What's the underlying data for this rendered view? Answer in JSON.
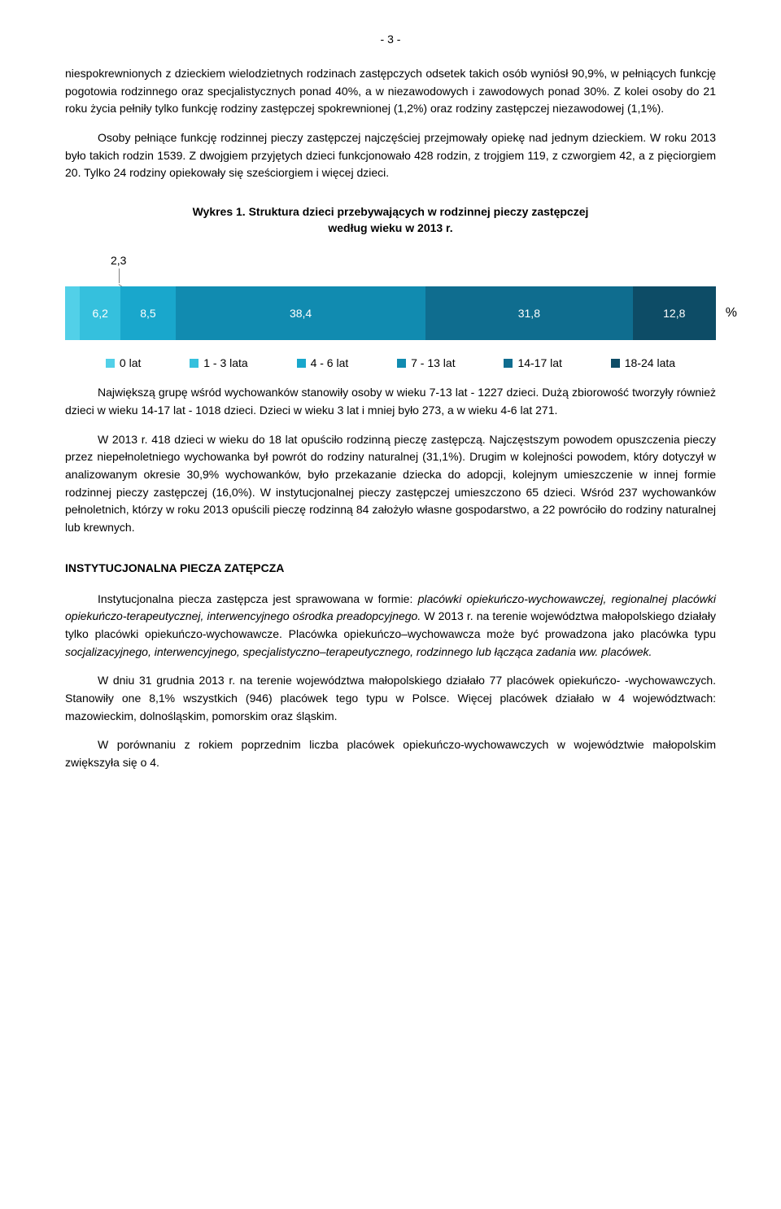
{
  "page_number": "- 3 -",
  "para1": "niespokrewnionych z dzieckiem wielodzietnych rodzinach zastępczych odsetek takich osób wyniósł 90,9%, w pełniących funkcję pogotowia rodzinnego oraz specjalistycznych ponad 40%, a w niezawodowych i zawodowych ponad 30%. Z kolei osoby do 21 roku życia pełniły tylko funkcję rodziny zastępczej spokrewnionej (1,2%) oraz rodziny zastępczej niezawodowej (1,1%).",
  "para2": "Osoby pełniące funkcję rodzinnej pieczy zastępczej najczęściej przejmowały opiekę nad jednym dzieckiem. W roku 2013 było takich rodzin 1539. Z dwojgiem przyjętych dzieci funkcjonowało 428 rodzin, z trojgiem 119, z czworgiem 42, a z pięciorgiem 20. Tylko 24 rodziny opiekowały się sześciorgiem i więcej dzieci.",
  "chart": {
    "title": "Wykres 1. Struktura dzieci przebywających w rodzinnej pieczy zastępczej",
    "subtitle": "według wieku w 2013 r.",
    "callout_value": "2,3",
    "percent_symbol": "%",
    "segments": [
      {
        "label": "",
        "value": 2.3,
        "color": "#52d0e8"
      },
      {
        "label": "6,2",
        "value": 6.2,
        "color": "#35c0dd"
      },
      {
        "label": "8,5",
        "value": 8.5,
        "color": "#19a7cc"
      },
      {
        "label": "38,4",
        "value": 38.4,
        "color": "#118bb0"
      },
      {
        "label": "31,8",
        "value": 31.8,
        "color": "#0f6d8f"
      },
      {
        "label": "12,8",
        "value": 12.8,
        "color": "#0d4c66"
      }
    ],
    "legend": [
      {
        "label": "0 lat",
        "color": "#52d0e8"
      },
      {
        "label": "1 - 3 lata",
        "color": "#35c0dd"
      },
      {
        "label": "4 - 6 lat",
        "color": "#19a7cc"
      },
      {
        "label": "7 - 13 lat",
        "color": "#118bb0"
      },
      {
        "label": "14-17 lat",
        "color": "#0f6d8f"
      },
      {
        "label": "18-24 lata",
        "color": "#0d4c66"
      }
    ]
  },
  "para3": "Największą grupę wśród wychowanków stanowiły osoby w wieku 7-13 lat - 1227 dzieci. Dużą zbiorowość tworzyły również dzieci w wieku 14-17 lat - 1018 dzieci. Dzieci w wieku 3 lat i mniej było 273, a w wieku 4-6 lat 271.",
  "para4": "W 2013 r. 418 dzieci w wieku do 18 lat opuściło rodzinną pieczę zastępczą. Najczęstszym powodem opuszczenia pieczy przez niepełnoletniego wychowanka był powrót do rodziny naturalnej (31,1%). Drugim w kolejności powodem, który dotyczył w analizowanym okresie 30,9% wychowanków, było przekazanie dziecka do adopcji, kolejnym umieszczenie w innej formie rodzinnej pieczy zastępczej (16,0%). W instytucjonalnej pieczy zastępczej umieszczono 65 dzieci. Wśród 237 wychowanków pełnoletnich, którzy w roku 2013 opuścili pieczę rodzinną 84 założyło własne gospodarstwo, a 22 powróciło do rodziny naturalnej lub krewnych.",
  "section_heading": "INSTYTUCJONALNA PIECZA ZATĘPCZA",
  "para5_plain": "Instytucjonalna piecza zastępcza jest sprawowana w formie: ",
  "para5_italic1": "placówki opiekuńczo-wychowawczej, regionalnej placówki opiekuńczo-terapeutycznej, interwencyjnego ośrodka preadopcyjnego.",
  "para5_tail": " W 2013 r. na terenie województwa małopolskiego działały tylko placówki opiekuńczo-wychowawcze. Placówka opiekuńczo–wychowawcza może być prowadzona jako placówka typu ",
  "para5_italic2": "socjalizacyjnego, interwencyjnego, specjalistyczno–terapeutycznego, rodzinnego lub łącząca zadania ww. placówek.",
  "para6": "W dniu 31 grudnia 2013 r. na terenie województwa małopolskiego działało 77 placówek opiekuńczo- -wychowawczych. Stanowiły one 8,1% wszystkich (946) placówek tego typu w Polsce. Więcej placówek działało w 4 województwach: mazowieckim, dolnośląskim, pomorskim oraz śląskim.",
  "para7": "W porównaniu z rokiem poprzednim liczba placówek opiekuńczo-wychowawczych w województwie małopolskim zwiększyła się o 4."
}
